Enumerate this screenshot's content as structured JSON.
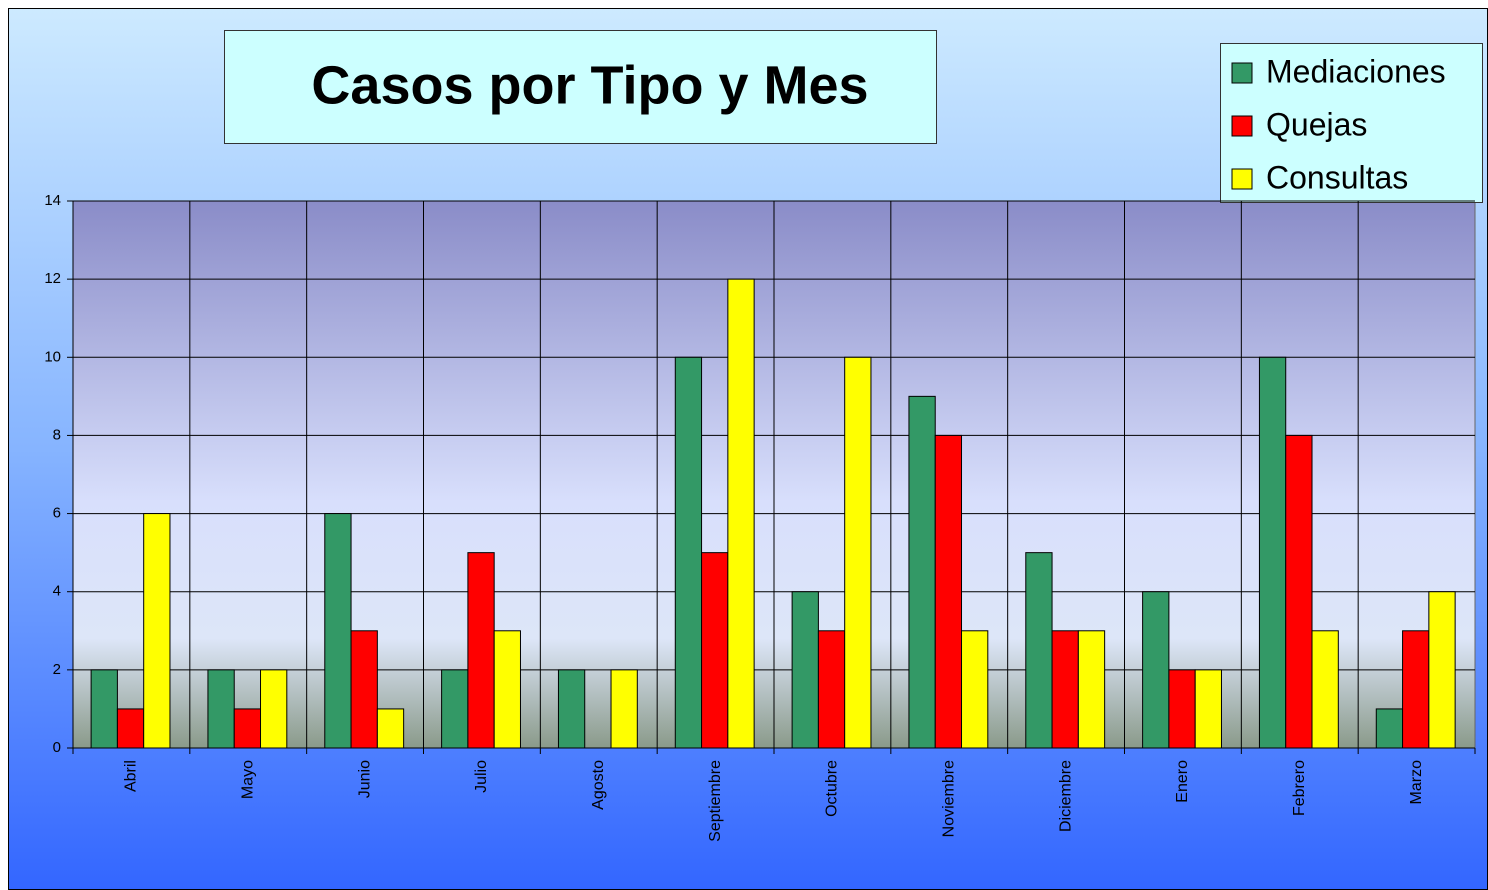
{
  "chart_data": {
    "type": "bar",
    "title": "Casos por Tipo y Mes",
    "categories": [
      "Abril",
      "Mayo",
      "Junio",
      "Julio",
      "Agosto",
      "Septiembre",
      "Octubre",
      "Noviembre",
      "Diciembre",
      "Enero",
      "Febrero",
      "Marzo"
    ],
    "series": [
      {
        "name": "Mediaciones",
        "color": "#339966",
        "values": [
          2,
          2,
          6,
          2,
          2,
          10,
          4,
          9,
          5,
          4,
          10,
          1
        ]
      },
      {
        "name": "Quejas",
        "color": "#ff0000",
        "values": [
          1,
          1,
          3,
          5,
          0,
          5,
          3,
          8,
          3,
          2,
          8,
          3
        ]
      },
      {
        "name": "Consultas",
        "color": "#ffff00",
        "values": [
          6,
          2,
          1,
          3,
          2,
          12,
          10,
          3,
          3,
          2,
          3,
          4
        ]
      }
    ],
    "ylim": [
      0,
      14
    ],
    "yticks": [
      0,
      2,
      4,
      6,
      8,
      10,
      12,
      14
    ],
    "grid": true,
    "legend": "top-right"
  }
}
